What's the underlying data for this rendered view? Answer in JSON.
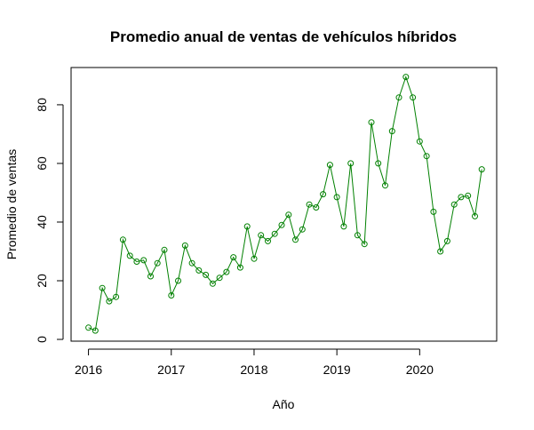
{
  "chart_data": {
    "type": "line",
    "title": "Promedio anual de ventas de vehículos híbridos",
    "xlabel": "Año",
    "ylabel": "Promedio de ventas",
    "xlim": [
      2015.79,
      2020.93
    ],
    "ylim": [
      -0.6,
      92.7
    ],
    "x_ticks": [
      2016,
      2017,
      2018,
      2019,
      2020
    ],
    "x_tick_labels": [
      "2016",
      "2017",
      "2018",
      "2019",
      "2020"
    ],
    "y_ticks": [
      0,
      20,
      40,
      60,
      80
    ],
    "y_tick_labels": [
      "0",
      "20",
      "40",
      "60",
      "80"
    ],
    "grid": false,
    "color": "#008000",
    "series": [
      {
        "x": [
          2016.0,
          2016.083,
          2016.167,
          2016.25,
          2016.333,
          2016.417,
          2016.5,
          2016.583,
          2016.667,
          2016.75,
          2016.833,
          2016.917,
          2017.0,
          2017.083,
          2017.167,
          2017.25,
          2017.333,
          2017.417,
          2017.5,
          2017.583,
          2017.667,
          2017.75,
          2017.833,
          2017.917,
          2018.0,
          2018.083,
          2018.167,
          2018.25,
          2018.333,
          2018.417,
          2018.5,
          2018.583,
          2018.667,
          2018.75,
          2018.833,
          2018.917,
          2019.0,
          2019.083,
          2019.167,
          2019.25,
          2019.333,
          2019.417,
          2019.5,
          2019.583,
          2019.667,
          2019.75,
          2019.833,
          2019.917,
          2020.0,
          2020.083,
          2020.167,
          2020.25,
          2020.333,
          2020.417,
          2020.5,
          2020.583,
          2020.667,
          2020.75
        ],
        "values": [
          4,
          3,
          17.5,
          13,
          14.5,
          34,
          28.5,
          26.5,
          27,
          21.5,
          26,
          30.5,
          15,
          20,
          32,
          26,
          23.5,
          22,
          19,
          21,
          23,
          28,
          24.5,
          38.5,
          27.5,
          35.5,
          33.5,
          36,
          39,
          42.5,
          34,
          37.5,
          46,
          45,
          49.5,
          59.5,
          48.5,
          38.5,
          60,
          35.5,
          32.5,
          74,
          60,
          52.5,
          71,
          82.5,
          89.5,
          82.5,
          67.5,
          62.5,
          43.5,
          30,
          33.5,
          46,
          48.5,
          49,
          42,
          58
        ]
      }
    ]
  }
}
